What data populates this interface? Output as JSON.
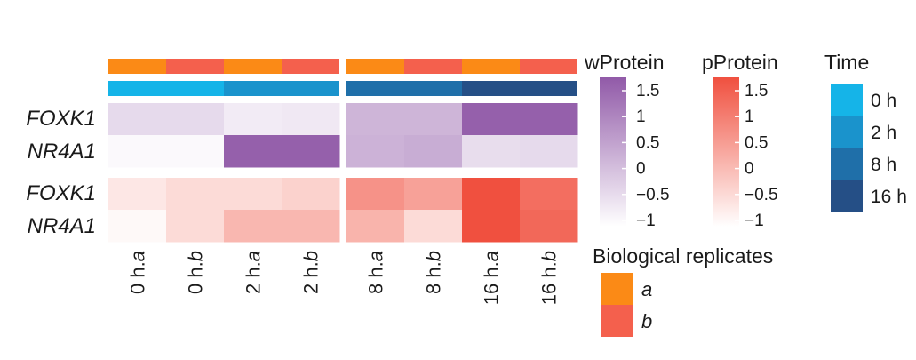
{
  "chart_data": {
    "type": "heatmap",
    "columns": [
      "0 h.a",
      "0 h.b",
      "2 h.a",
      "2 h.b",
      "8 h.a",
      "8 h.b",
      "16 h.a",
      "16 h.b"
    ],
    "column_label_parts": [
      {
        "time": "0 h.",
        "rep": "a"
      },
      {
        "time": "0 h.",
        "rep": "b"
      },
      {
        "time": "2 h.",
        "rep": "a"
      },
      {
        "time": "2 h.",
        "rep": "b"
      },
      {
        "time": "8 h.",
        "rep": "a"
      },
      {
        "time": "8 h.",
        "rep": "b"
      },
      {
        "time": "16 h.",
        "rep": "a"
      },
      {
        "time": "16 h.",
        "rep": "b"
      }
    ],
    "column_gap_after": 4,
    "annotation_rows": {
      "replicate": [
        "a",
        "b",
        "a",
        "b",
        "a",
        "b",
        "a",
        "b"
      ],
      "time": [
        "0 h",
        "0 h",
        "2 h",
        "2 h",
        "8 h",
        "8 h",
        "16 h",
        "16 h"
      ]
    },
    "blocks": [
      {
        "scale": "wProtein",
        "rows": [
          {
            "gene": "FOXK1",
            "values": [
              -0.55,
              -0.55,
              -0.85,
              -0.8,
              0.1,
              0.1,
              1.6,
              1.6
            ]
          },
          {
            "gene": "NR4A1",
            "values": [
              -1.1,
              -1.1,
              1.6,
              1.6,
              0.15,
              0.25,
              -0.6,
              -0.55
            ]
          }
        ]
      },
      {
        "scale": "pProtein",
        "rows": [
          {
            "gene": "FOXK1",
            "values": [
              -0.8,
              -0.6,
              -0.6,
              -0.45,
              0.6,
              0.35,
              1.75,
              1.2
            ]
          },
          {
            "gene": "NR4A1",
            "values": [
              -1.1,
              -0.6,
              0.0,
              0.0,
              0.05,
              -0.6,
              1.75,
              1.3
            ]
          }
        ]
      }
    ],
    "legends": {
      "wProtein": {
        "title": "wProtein",
        "ticks": [
          "1.5",
          "1",
          "0.5",
          "0",
          "−0.5",
          "−1"
        ],
        "color_low": "#ffffff",
        "color_high": "#915aa8"
      },
      "pProtein": {
        "title": "pProtein",
        "ticks": [
          "1.5",
          "1",
          "0.5",
          "0",
          "−0.5",
          "−1"
        ],
        "color_low": "#ffffff",
        "color_high": "#f0503f"
      },
      "time": {
        "title": "Time",
        "levels": [
          "0 h",
          "2 h",
          "8 h",
          "16 h"
        ],
        "colors": [
          "#15b4e8",
          "#1a93cc",
          "#1f6fa9",
          "#254f86"
        ]
      },
      "replicates": {
        "title": "Biological replicates",
        "levels": [
          "a",
          "b"
        ],
        "colors": [
          "#fb8a16",
          "#f4604d"
        ]
      }
    },
    "value_range": [
      -1.2,
      1.7
    ]
  }
}
